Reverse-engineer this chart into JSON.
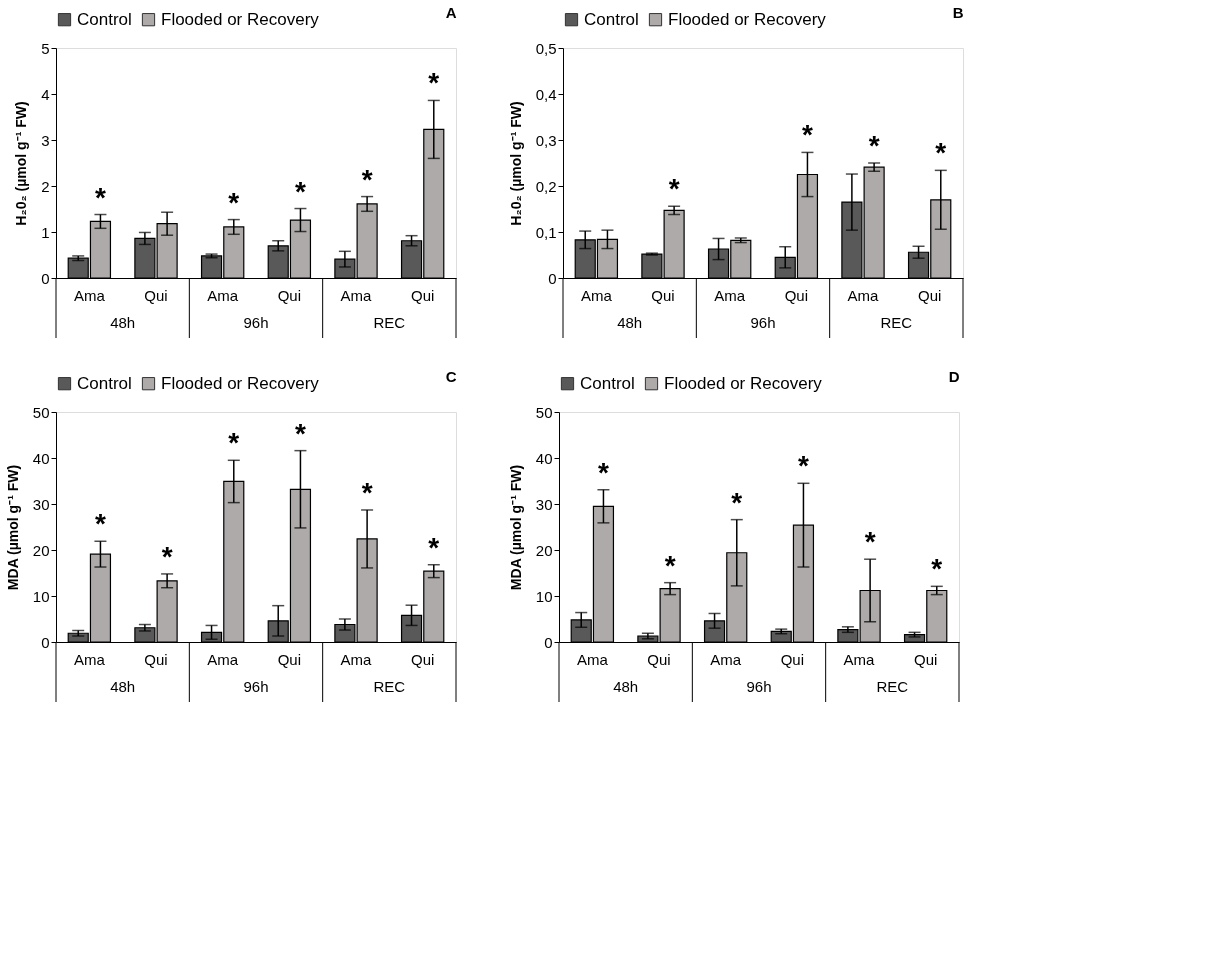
{
  "chart_data": [
    {
      "type": "bar",
      "title": "A",
      "ylabel": "H₂0₂ (µmol g⁻¹ FW)",
      "categories": [
        "Ama",
        "Qui",
        "Ama",
        "Qui",
        "Ama",
        "Qui"
      ],
      "annotations": [
        "48h",
        "96h",
        "REC"
      ],
      "ylim": [
        0,
        5
      ],
      "yticks": [
        0,
        1,
        2,
        3,
        4,
        5
      ],
      "grid": false,
      "legend": "top",
      "series": [
        {
          "name": "Control",
          "color": "#595959",
          "values": [
            0.43,
            0.86,
            0.48,
            0.7,
            0.41,
            0.81
          ],
          "errors": [
            0.05,
            0.13,
            0.04,
            0.11,
            0.17,
            0.11
          ]
        },
        {
          "name": "Flooded or Recovery",
          "color": "#aeaaaa",
          "values": [
            1.23,
            1.18,
            1.11,
            1.26,
            1.61,
            3.23
          ],
          "errors": [
            0.15,
            0.25,
            0.16,
            0.25,
            0.16,
            0.63
          ],
          "value_labels": [
            "*",
            null,
            "*",
            "*",
            "*",
            "*"
          ]
        }
      ]
    },
    {
      "type": "bar",
      "title": "B",
      "ylabel": "H₂0₂ (µmol g⁻¹ FW)",
      "categories": [
        "Ama",
        "Qui",
        "Ama",
        "Qui",
        "Ama",
        "Qui"
      ],
      "annotations": [
        "48h",
        "96h",
        "REC"
      ],
      "ylim": [
        0,
        0.5
      ],
      "yticks": [
        0,
        {
          "value": 0.1,
          "label": "0,1"
        },
        {
          "value": 0.2,
          "label": "0,2"
        },
        {
          "value": 0.3,
          "label": "0,3"
        },
        {
          "value": 0.4,
          "label": "0,4"
        },
        {
          "value": 0.5,
          "label": "0,5"
        }
      ],
      "grid": false,
      "legend": "top",
      "series": [
        {
          "name": "Control",
          "color": "#595959",
          "values": [
            0.083,
            0.052,
            0.063,
            0.045,
            0.165,
            0.056
          ],
          "errors": [
            0.019,
            0.002,
            0.023,
            0.023,
            0.061,
            0.013
          ]
        },
        {
          "name": "Flooded or Recovery",
          "color": "#aeaaaa",
          "values": [
            0.084,
            0.147,
            0.082,
            0.225,
            0.241,
            0.17
          ],
          "errors": [
            0.02,
            0.009,
            0.005,
            0.048,
            0.009,
            0.064
          ],
          "value_labels": [
            null,
            "*",
            null,
            "*",
            "*",
            "*"
          ]
        }
      ]
    },
    {
      "type": "bar",
      "title": "C",
      "ylabel": "MDA (µmol g⁻¹ FW)",
      "categories": [
        "Ama",
        "Qui",
        "Ama",
        "Qui",
        "Ama",
        "Qui"
      ],
      "annotations": [
        "48h",
        "96h",
        "REC"
      ],
      "ylim": [
        0,
        50
      ],
      "yticks": [
        0,
        10,
        20,
        30,
        40,
        50
      ],
      "grid": false,
      "legend": "top",
      "series": [
        {
          "name": "Control",
          "color": "#595959",
          "values": [
            1.9,
            3.1,
            2.1,
            4.6,
            3.8,
            5.8
          ],
          "errors": [
            0.6,
            0.7,
            1.5,
            3.3,
            1.2,
            2.2
          ]
        },
        {
          "name": "Flooded or Recovery",
          "color": "#aeaaaa",
          "values": [
            19.1,
            13.3,
            34.9,
            33.2,
            22.4,
            15.4
          ],
          "errors": [
            2.8,
            1.5,
            4.6,
            8.4,
            6.3,
            1.4
          ],
          "value_labels": [
            "*",
            "*",
            "*",
            "*",
            "*",
            "*"
          ]
        }
      ]
    },
    {
      "type": "bar",
      "title": "D",
      "ylabel": "MDA (µmol g⁻¹ FW)",
      "categories": [
        "Ama",
        "Qui",
        "Ama",
        "Qui",
        "Ama",
        "Qui"
      ],
      "annotations": [
        "48h",
        "96h",
        "REC"
      ],
      "ylim": [
        0,
        50
      ],
      "yticks": [
        0,
        10,
        20,
        30,
        40,
        50
      ],
      "grid": false,
      "legend": "top",
      "series": [
        {
          "name": "Control",
          "color": "#595959",
          "values": [
            4.8,
            1.3,
            4.6,
            2.3,
            2.7,
            1.6
          ],
          "errors": [
            1.6,
            0.6,
            1.6,
            0.5,
            0.6,
            0.5
          ]
        },
        {
          "name": "Flooded or Recovery",
          "color": "#aeaaaa",
          "values": [
            29.5,
            11.6,
            19.4,
            25.4,
            11.2,
            11.2
          ],
          "errors": [
            3.6,
            1.3,
            7.2,
            9.1,
            6.8,
            0.9
          ],
          "value_labels": [
            "*",
            "*",
            "*",
            "*",
            "*",
            "*"
          ]
        }
      ]
    }
  ]
}
